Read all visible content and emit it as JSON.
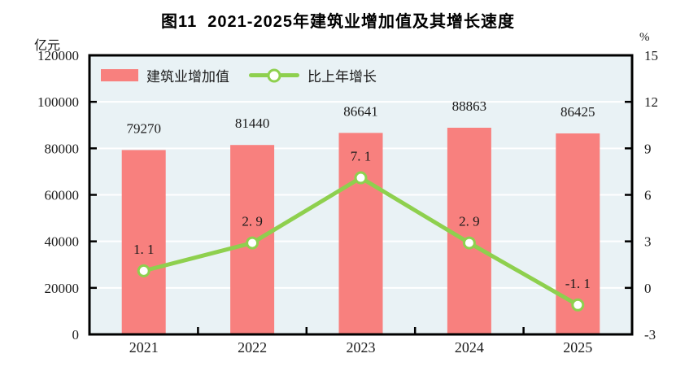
{
  "title": "图11  2021-2025年建筑业增加值及其增长速度",
  "left_axis_unit": "亿元",
  "right_axis_unit": "%",
  "legend": [
    {
      "label": "建筑业增加值",
      "type": "bar",
      "color": "#f8807e"
    },
    {
      "label": "比上年增长",
      "type": "line",
      "color": "#8ed04e"
    }
  ],
  "chart_data": {
    "type": "bar+line",
    "title": "图11  2021-2025年建筑业增加值及其增长速度",
    "categories": [
      "2021",
      "2022",
      "2023",
      "2024",
      "2025"
    ],
    "series": [
      {
        "name": "建筑业增加值",
        "type": "bar",
        "axis": "left",
        "unit": "亿元",
        "values": [
          79270,
          81440,
          86641,
          88863,
          86425
        ],
        "labels": [
          "79270",
          "81440",
          "86641",
          "88863",
          "86425"
        ],
        "color": "#f8807e"
      },
      {
        "name": "比上年增长",
        "type": "line",
        "axis": "right",
        "unit": "%",
        "values": [
          1.1,
          2.9,
          7.1,
          2.9,
          -1.1
        ],
        "labels": [
          "1. 1",
          "2. 9",
          "7. 1",
          "2. 9",
          "-1. 1"
        ],
        "color": "#8ed04e",
        "marker_fill": "#ffffff",
        "marker_stroke": "#8ed04e"
      }
    ],
    "left_axis": {
      "min": 0,
      "max": 120000,
      "step": 20000,
      "ticks": [
        "0",
        "20000",
        "40000",
        "60000",
        "80000",
        "100000",
        "120000"
      ]
    },
    "right_axis": {
      "min": -3,
      "max": 15,
      "step": 3,
      "ticks": [
        "-3",
        "0",
        "3",
        "6",
        "9",
        "12",
        "15"
      ]
    },
    "plot_bg": "#e9f2f5",
    "grid_color": "#ffffff",
    "frame_color": "#000000",
    "text_color": "#1a1a1a",
    "grid": true,
    "legend_position": "top-left-inside"
  }
}
